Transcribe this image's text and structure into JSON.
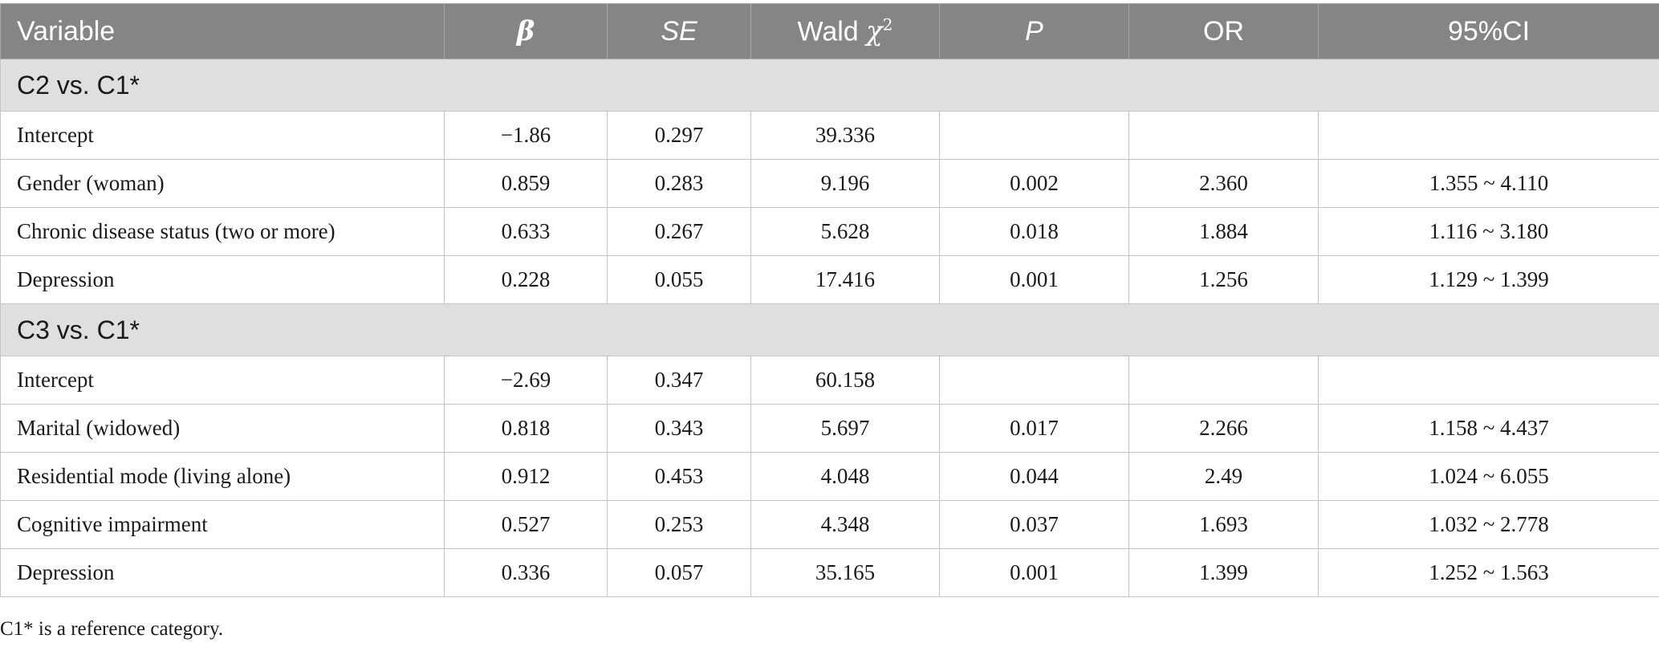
{
  "headers": {
    "variable": "Variable",
    "beta": "β",
    "se": "SE",
    "wald_text": "Wald ",
    "wald_chi": "χ",
    "wald_sup": "2",
    "p": "P",
    "or": "OR",
    "ci": "95%CI"
  },
  "groups": [
    {
      "label": "C2 vs. C1*",
      "rows": [
        {
          "variable": "Intercept",
          "beta": "−1.86",
          "se": "0.297",
          "wald": "39.336",
          "p": "",
          "or": "",
          "ci": ""
        },
        {
          "variable": "Gender (woman)",
          "beta": "0.859",
          "se": "0.283",
          "wald": "9.196",
          "p": "0.002",
          "or": "2.360",
          "ci": "1.355 ~ 4.110"
        },
        {
          "variable": "Chronic disease status (two or more)",
          "beta": "0.633",
          "se": "0.267",
          "wald": "5.628",
          "p": "0.018",
          "or": "1.884",
          "ci": "1.116 ~ 3.180"
        },
        {
          "variable": "Depression",
          "beta": "0.228",
          "se": "0.055",
          "wald": "17.416",
          "p": "0.001",
          "or": "1.256",
          "ci": "1.129 ~ 1.399"
        }
      ]
    },
    {
      "label": "C3 vs. C1*",
      "rows": [
        {
          "variable": "Intercept",
          "beta": "−2.69",
          "se": "0.347",
          "wald": "60.158",
          "p": "",
          "or": "",
          "ci": ""
        },
        {
          "variable": "Marital (widowed)",
          "beta": "0.818",
          "se": "0.343",
          "wald": "5.697",
          "p": "0.017",
          "or": "2.266",
          "ci": "1.158 ~ 4.437"
        },
        {
          "variable": "Residential mode (living alone)",
          "beta": "0.912",
          "se": "0.453",
          "wald": "4.048",
          "p": "0.044",
          "or": "2.49",
          "ci": "1.024 ~ 6.055"
        },
        {
          "variable": "Cognitive impairment",
          "beta": "0.527",
          "se": "0.253",
          "wald": "4.348",
          "p": "0.037",
          "or": "1.693",
          "ci": "1.032 ~ 2.778"
        },
        {
          "variable": "Depression",
          "beta": "0.336",
          "se": "0.057",
          "wald": "35.165",
          "p": "0.001",
          "or": "1.399",
          "ci": "1.252 ~ 1.563"
        }
      ]
    }
  ],
  "footnote": "C1* is a reference category."
}
